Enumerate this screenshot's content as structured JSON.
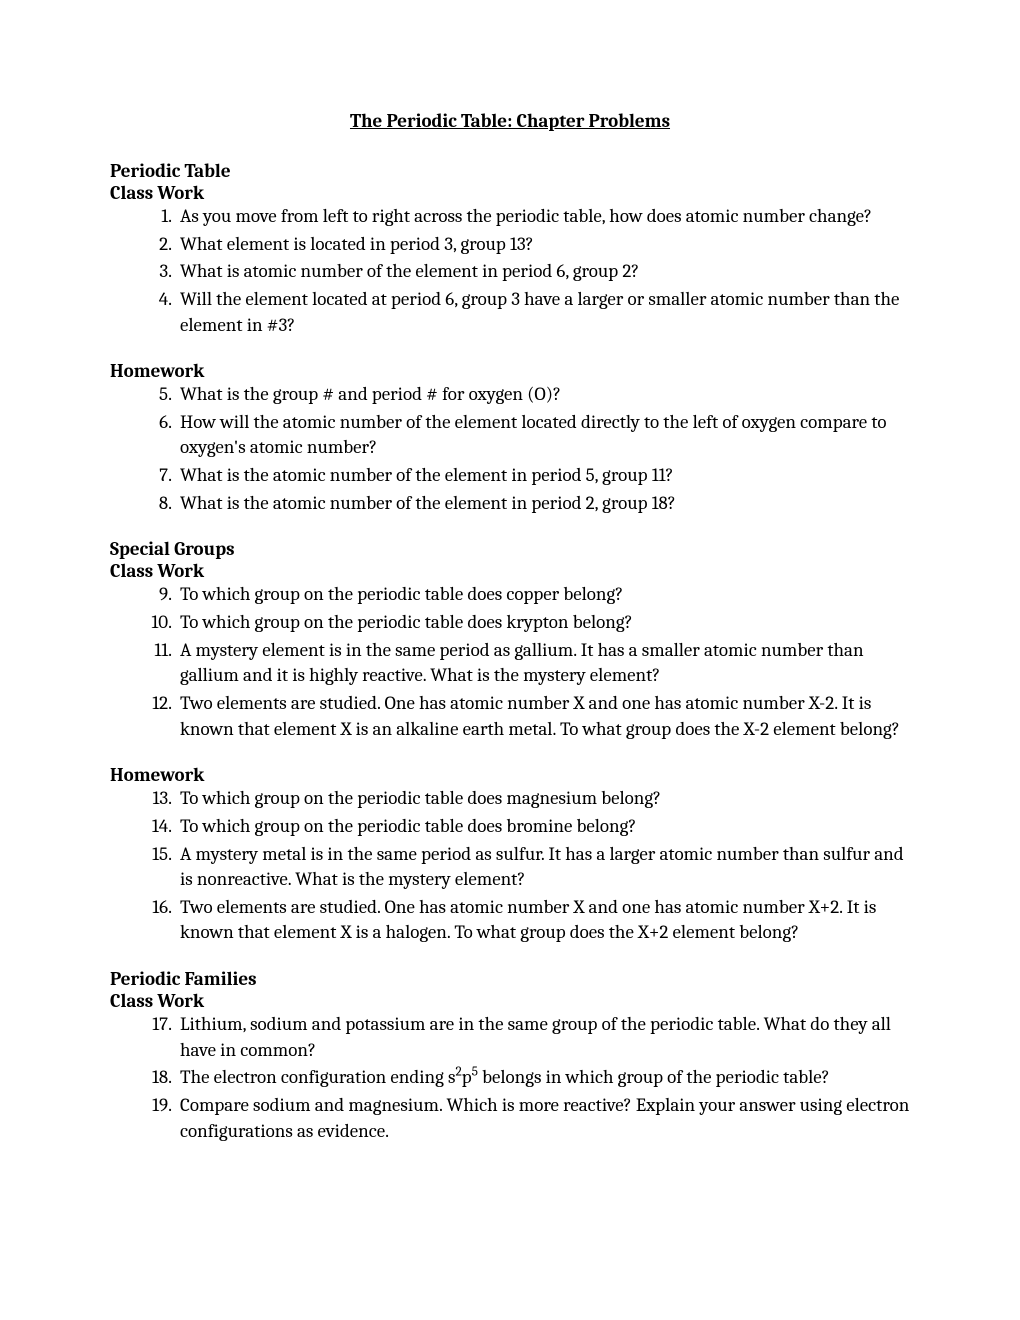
{
  "title": "The Periodic Table: Chapter Problems",
  "sections": [
    {
      "heading": "Periodic Table",
      "sub": "Class Work",
      "items": [
        {
          "n": "1.",
          "t": "As you move from left to right across the periodic table, how does atomic number change?"
        },
        {
          "n": "2.",
          "t": "What element is located in period 3, group 13?"
        },
        {
          "n": "3.",
          "t": "What is atomic number of the element in period 6, group 2?"
        },
        {
          "n": "4.",
          "t": "Will the element located at period 6, group 3 have a larger or smaller atomic number than the element in #3?"
        }
      ]
    },
    {
      "heading": "",
      "sub": "Homework",
      "items": [
        {
          "n": "5.",
          "t": "What is the group # and period # for oxygen (O)?"
        },
        {
          "n": "6.",
          "t": "How will the atomic number of the element located directly to the left of oxygen compare to oxygen's atomic number?"
        },
        {
          "n": "7.",
          "t": "What is the atomic number of the element in period 5, group 11?"
        },
        {
          "n": "8.",
          "t": "What is the atomic number of the element in period 2, group 18?"
        }
      ]
    },
    {
      "heading": "Special Groups",
      "sub": "Class Work",
      "items": [
        {
          "n": "9.",
          "t": "To which group on the periodic table does copper belong?"
        },
        {
          "n": "10.",
          "t": "To which group on the periodic table does krypton belong?"
        },
        {
          "n": "11.",
          "t": "A mystery element is in the same period as gallium. It has a smaller atomic number than gallium and it is highly reactive. What is the mystery element?"
        },
        {
          "n": "12.",
          "t": "Two elements are studied. One has atomic number X and one has atomic number X-2. It is known that element X is an alkaline earth metal. To what group does the X-2 element belong?"
        }
      ]
    },
    {
      "heading": "",
      "sub": "Homework",
      "items": [
        {
          "n": "13.",
          "t": "To which group on the periodic table does magnesium belong?"
        },
        {
          "n": "14.",
          "t": "To which group on the periodic table does bromine belong?"
        },
        {
          "n": "15.",
          "t": "A mystery metal is in the same period as sulfur. It has a larger atomic number than sulfur and is nonreactive. What is the mystery element?"
        },
        {
          "n": "16.",
          "t": "Two elements are studied. One has atomic number X and one has atomic number X+2. It is known that element X is a halogen. To what group does the X+2 element belong?"
        }
      ]
    },
    {
      "heading": "Periodic Families",
      "sub": "Class Work",
      "items": [
        {
          "n": "17.",
          "t": "Lithium, sodium and potassium are in the same group of the periodic table. What do they all have in common?"
        },
        {
          "n": "18.",
          "html": "The electron configuration ending s<sup>2</sup>p<sup>5</sup> belongs in which group of the periodic table?"
        },
        {
          "n": "19.",
          "t": "Compare sodium and magnesium. Which is more reactive? Explain your answer using electron configurations as evidence."
        }
      ]
    }
  ]
}
